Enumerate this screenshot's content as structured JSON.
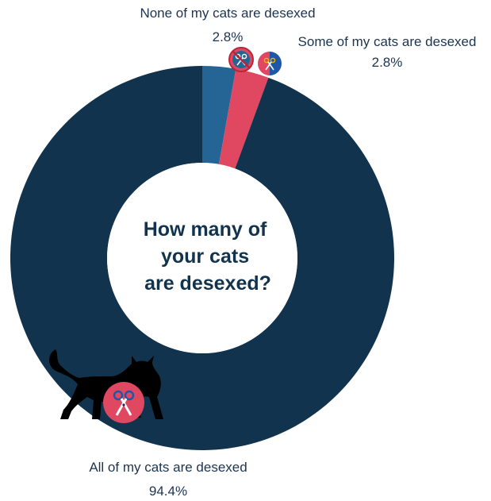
{
  "chart_data": {
    "type": "pie",
    "title": "How many of your cats are desexed?",
    "title_lines": [
      "How many of",
      "your cats",
      "are desexed?"
    ],
    "donut": true,
    "slices": [
      {
        "label": "None of my cats are desexed",
        "value": 2.8,
        "value_label": "2.8%",
        "color": "#256596"
      },
      {
        "label": "Some of my cats are desexed",
        "value": 2.8,
        "value_label": "2.8%",
        "color": "#df4860"
      },
      {
        "label": "All of my cats are desexed",
        "value": 94.4,
        "value_label": "94.4%",
        "color": "#12334d"
      }
    ]
  },
  "icons": {
    "none": "scissors-crossed-out-icon",
    "some": "scissors-half-icon",
    "all": "scissors-icon",
    "cat": "cat-silhouette-icon"
  }
}
